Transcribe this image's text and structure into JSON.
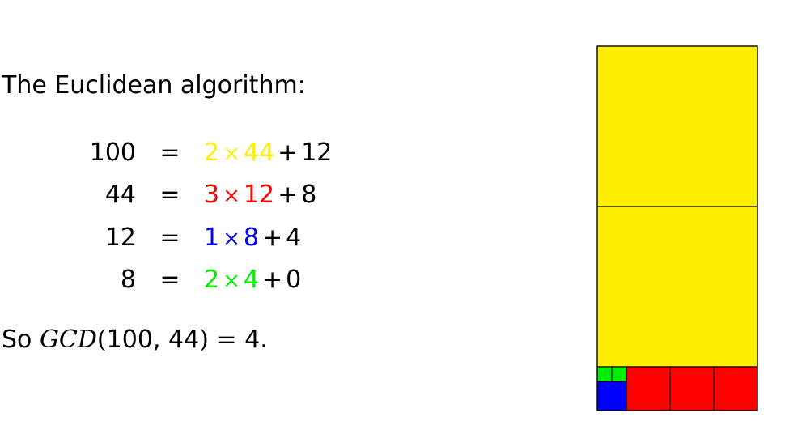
{
  "intro": {
    "text": "The Euclidean algorithm:"
  },
  "equations": [
    {
      "lhs": "100",
      "equals": "=",
      "quotient": "2",
      "times": "×",
      "divisor": "44",
      "plus": "+",
      "remainder": "12",
      "color": "#ffee00"
    },
    {
      "lhs": "44",
      "equals": "=",
      "quotient": "3",
      "times": "×",
      "divisor": "12",
      "plus": "+",
      "remainder": "8",
      "color": "#ff0000"
    },
    {
      "lhs": "12",
      "equals": "=",
      "quotient": "1",
      "times": "×",
      "divisor": "8",
      "plus": "+",
      "remainder": "4",
      "color": "#0000ff"
    },
    {
      "lhs": "8",
      "equals": "=",
      "quotient": "2",
      "times": "×",
      "divisor": "4",
      "plus": "+",
      "remainder": "0",
      "color": "#00ee00"
    }
  ],
  "conclusion": {
    "prefix": "So",
    "func": "GCD",
    "open": "(",
    "args": "100, 44",
    "close": ")",
    "equals": "=",
    "result": "4",
    "suffix": "."
  },
  "colors": {
    "yellow": "#ffee00",
    "red": "#ff0000",
    "blue": "#0000ff",
    "green": "#00ee00",
    "outline": "#000000"
  }
}
